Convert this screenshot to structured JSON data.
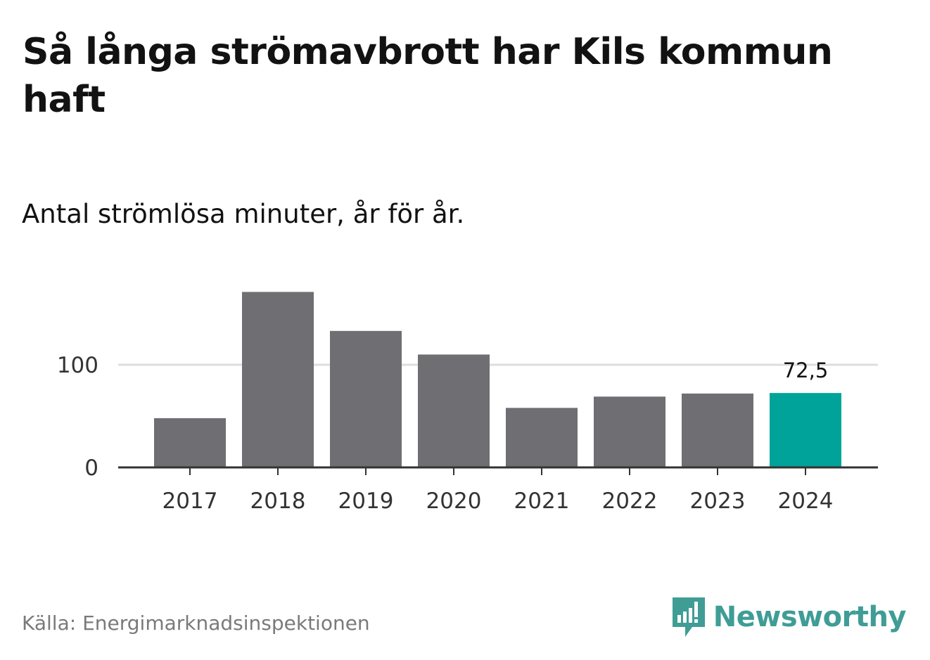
{
  "header": {
    "title": "Så långa strömavbrott har Kils kommun haft",
    "subtitle": "Antal strömlösa minuter, år för år."
  },
  "footer": {
    "source": "Källa: Energimarknadsinspektionen",
    "brand": "Newsworthy"
  },
  "colors": {
    "bar": "#6f6e73",
    "highlight": "#00a39a",
    "gridline": "#dddddd",
    "axis": "#333333",
    "brand": "#3f9d96"
  },
  "icons": {
    "brand_logo": "newsworthy-logo-icon"
  },
  "chart_data": {
    "type": "bar",
    "title": "Så långa strömavbrott har Kils kommun haft",
    "subtitle": "Antal strömlösa minuter, år för år.",
    "xlabel": "",
    "ylabel": "",
    "categories": [
      "2017",
      "2018",
      "2019",
      "2020",
      "2021",
      "2022",
      "2023",
      "2024"
    ],
    "values": [
      48,
      171,
      133,
      110,
      58,
      69,
      72,
      72.5
    ],
    "highlight_index": 7,
    "data_labels": [
      {
        "index": 7,
        "text": "72,5"
      }
    ],
    "y_ticks": [
      0,
      100
    ],
    "y_tick_labels": [
      "0",
      "100"
    ],
    "ylim": [
      0,
      180
    ],
    "grid": true
  }
}
